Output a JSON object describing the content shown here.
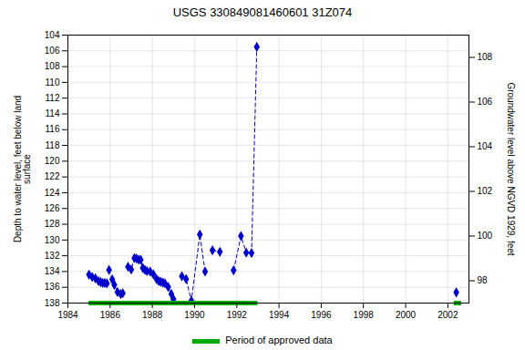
{
  "chart_data": {
    "type": "line",
    "title": "USGS 330849081460601 31Z074",
    "ylabel": "Depth to water level, feet below land\nsurface",
    "y2label": "Groundwater level above NGVD 1929, feet",
    "series": [
      {
        "x": [
          1985.0,
          1985.15,
          1985.3,
          1985.45,
          1985.55,
          1985.65,
          1985.75,
          1985.85,
          null,
          1985.95,
          1986.1,
          1986.2,
          1986.35,
          1986.5,
          1986.6,
          null,
          1986.85,
          1987.0,
          1987.15,
          1987.25,
          1987.35,
          1987.45,
          1987.55,
          1987.65,
          1987.75,
          null,
          1987.9,
          1988.05,
          1988.2,
          1988.3,
          1988.4,
          1988.5,
          1988.6,
          1988.75,
          1988.9,
          1989.0,
          null,
          1989.4,
          1989.6,
          1989.85,
          1990.25,
          1990.5,
          null,
          1990.85,
          1991.2,
          null,
          1991.85,
          1992.2,
          1992.45,
          1992.7,
          1992.95,
          null,
          2002.4
        ],
        "values": [
          134.4,
          134.7,
          134.85,
          135.2,
          135.35,
          135.45,
          135.45,
          135.5,
          null,
          133.8,
          135.0,
          135.7,
          136.6,
          136.85,
          136.75,
          null,
          133.4,
          133.75,
          132.3,
          132.35,
          132.5,
          132.5,
          133.55,
          133.8,
          133.95,
          null,
          134.0,
          134.35,
          134.95,
          135.2,
          135.3,
          135.4,
          135.5,
          135.95,
          136.85,
          137.5,
          null,
          134.6,
          134.95,
          137.7,
          129.3,
          134.0,
          null,
          131.3,
          131.5,
          null,
          133.85,
          129.5,
          131.6,
          131.65,
          105.5,
          null,
          136.65
        ],
        "color": "#0000cc",
        "marker": "diamond",
        "line_style": "dashed"
      },
      {
        "name": "Period of approved data",
        "type": "range",
        "color": "#00aa00",
        "periods": [
          [
            1985.0,
            1993.0
          ],
          [
            2002.3,
            2002.65
          ]
        ],
        "at": 138.0
      }
    ],
    "xlim": [
      1984,
      2003
    ],
    "xticks": [
      1984,
      1986,
      1988,
      1990,
      1992,
      1994,
      1996,
      1998,
      2000,
      2002
    ],
    "ylim": [
      138.0,
      104.0
    ],
    "yticks": [
      104,
      106,
      108,
      110,
      112,
      114,
      116,
      118,
      120,
      122,
      124,
      126,
      128,
      130,
      132,
      134,
      136,
      138
    ],
    "y2lim": [
      97.0,
      109.0
    ],
    "y2ticks": [
      98.0,
      100.0,
      102.0,
      104.0,
      106.0,
      108.0
    ],
    "grid": true,
    "legend": "bottom"
  }
}
